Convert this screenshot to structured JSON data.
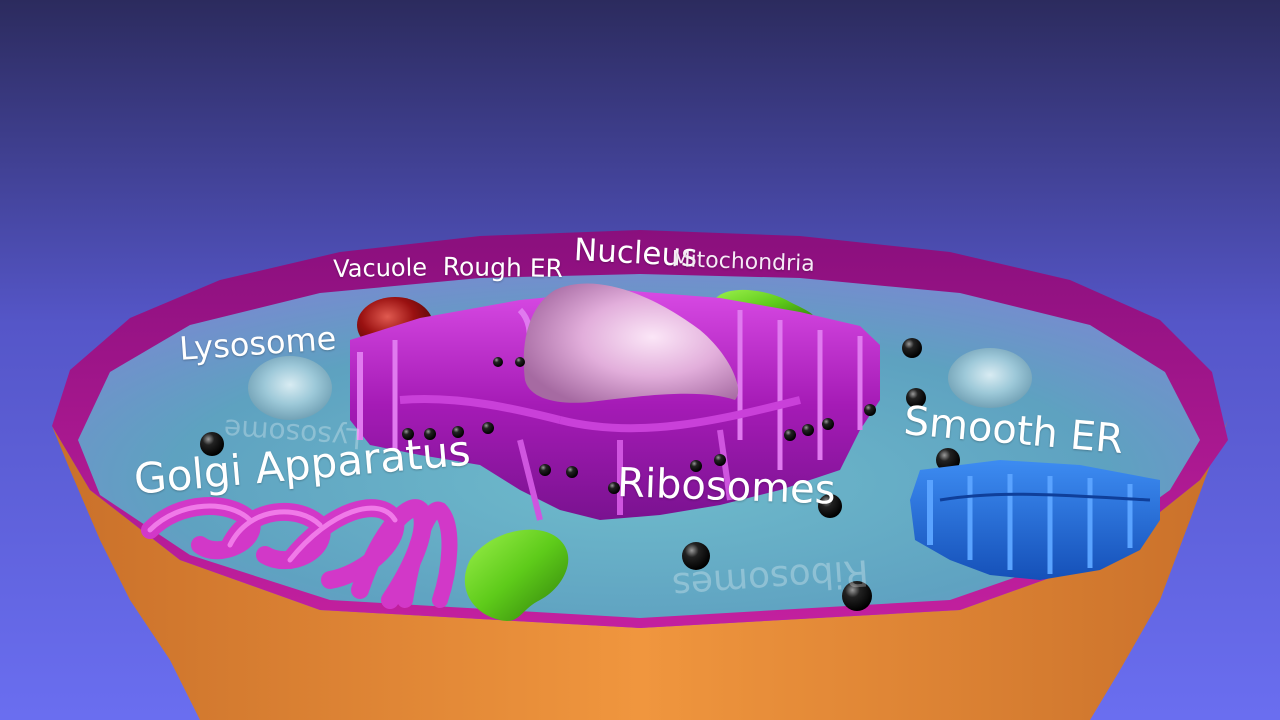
{
  "labels": {
    "vacuole": "Vacuole",
    "rough_er": "Rough ER",
    "nucleus": "Nucleus",
    "mitochondria": "Mitochondria",
    "lysosome": "Lysosome",
    "golgi_apparatus": "Golgi Apparatus",
    "ribosomes": "Ribosomes",
    "smooth_er": "Smooth ER"
  },
  "colors": {
    "background_top": "#2c2b5e",
    "background_bottom": "#6a6ef0",
    "membrane_rim": "#a0158f",
    "cell_wall_outer": "#e0883a",
    "cytoplasm": "#5bb6c8",
    "rough_er": "#b31fc4",
    "nucleus": "#e3b0dc",
    "golgi": "#d238c8",
    "smooth_er": "#1f6fe0",
    "mitochondria": "#5ecb1a",
    "vacuole": "#9cc6d6",
    "lysosome": "#9a1111",
    "ribosome": "#111111"
  }
}
